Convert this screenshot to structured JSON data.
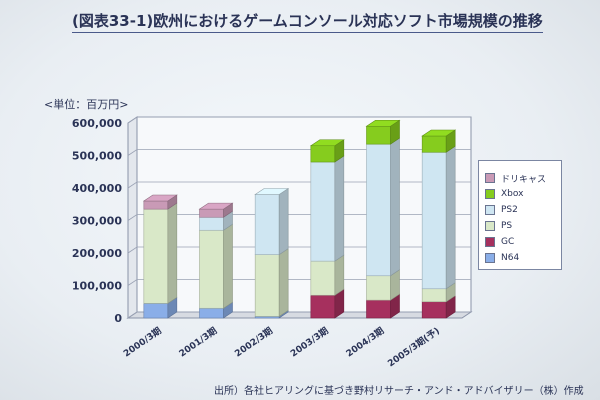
{
  "title": "(図表33-1)欧州におけるゲームコンソール対応ソフト市場規模の推移",
  "unit_label": "<単位：百万円>",
  "source": "出所）各社ヒアリングに基づき野村リサーチ・アンド・アドバイザリー（株）作成",
  "colors": {
    "N64": "#8aaee8",
    "GC": "#a6305e",
    "PS": "#d9e8c8",
    "PS2": "#cfe6f2",
    "Xbox": "#86cc1e",
    "ドリキャス": "#c99ab6"
  },
  "legend": [
    {
      "name": "ドリキャス",
      "key": "ドリキャス"
    },
    {
      "name": "Xbox",
      "key": "Xbox"
    },
    {
      "name": "PS2",
      "key": "PS2"
    },
    {
      "name": "PS",
      "key": "PS"
    },
    {
      "name": "GC",
      "key": "GC"
    },
    {
      "name": "N64",
      "key": "N64"
    }
  ],
  "chart_data": {
    "type": "bar",
    "stacked": true,
    "three_d": true,
    "title": "(図表33-1)欧州におけるゲームコンソール対応ソフト市場規模の推移",
    "ylabel": "<単位：百万円>",
    "xlabel": "",
    "ylim": [
      0,
      600000
    ],
    "yticks": [
      0,
      100000,
      200000,
      300000,
      400000,
      500000,
      600000
    ],
    "ytick_labels": [
      "0",
      "100,000",
      "200,000",
      "300,000",
      "400,000",
      "500,000",
      "600,000"
    ],
    "categories": [
      "2000/3期",
      "2001/3期",
      "2002/3期",
      "2003/3期",
      "2004/3期",
      "2005/3期(予)"
    ],
    "series": [
      {
        "name": "N64",
        "values": [
          45000,
          30000,
          5000,
          0,
          0,
          0
        ]
      },
      {
        "name": "GC",
        "values": [
          0,
          0,
          0,
          70000,
          55000,
          50000
        ]
      },
      {
        "name": "PS",
        "values": [
          290000,
          240000,
          190000,
          105000,
          75000,
          40000
        ]
      },
      {
        "name": "PS2",
        "values": [
          0,
          40000,
          185000,
          305000,
          405000,
          420000
        ]
      },
      {
        "name": "Xbox",
        "values": [
          0,
          0,
          0,
          50000,
          55000,
          50000
        ]
      },
      {
        "name": "ドリキャス",
        "values": [
          25000,
          25000,
          0,
          0,
          0,
          0
        ]
      }
    ],
    "grid": true,
    "legend_position": "right"
  }
}
